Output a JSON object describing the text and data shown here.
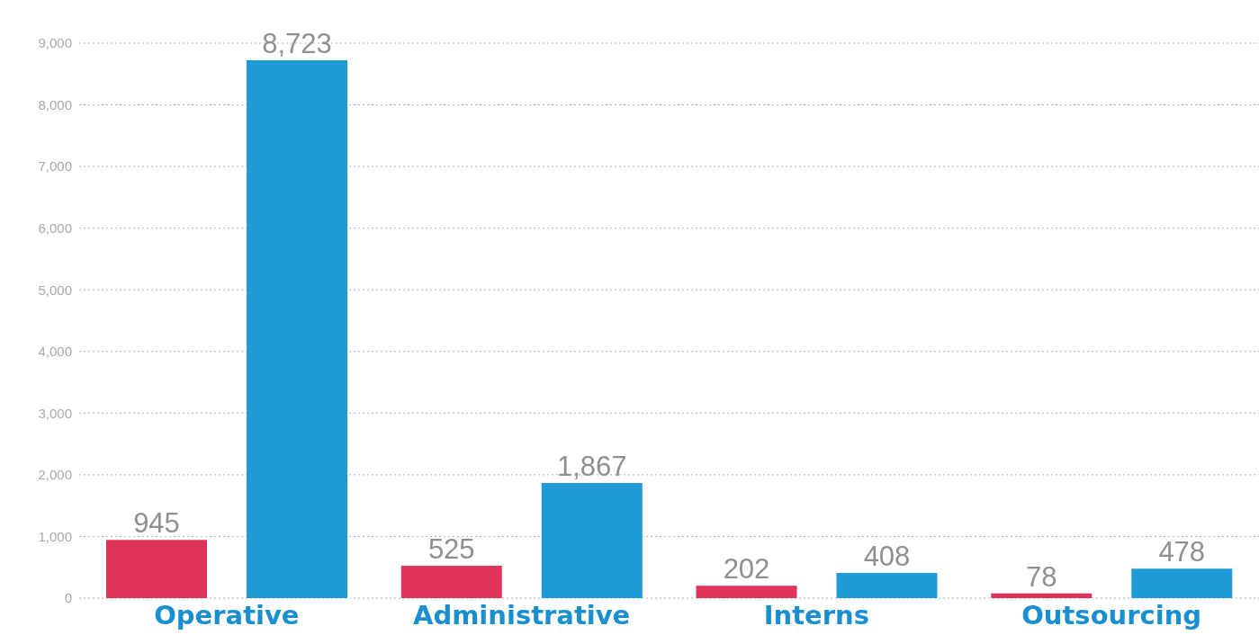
{
  "chart_data": {
    "type": "bar",
    "categories": [
      "Operative",
      "Administrative",
      "Interns",
      "Outsourcing"
    ],
    "series": [
      {
        "color": "#e0335a",
        "values": [
          945,
          525,
          202,
          78
        ],
        "value_labels": [
          "945",
          "525",
          "202",
          "78"
        ]
      },
      {
        "color": "#1e9ad6",
        "values": [
          8723,
          1867,
          408,
          478
        ],
        "value_labels": [
          "8,723",
          "1,867",
          "408",
          "478"
        ]
      }
    ],
    "ylim": [
      0,
      9000
    ],
    "yticks": [
      {
        "value": 0,
        "label": "0"
      },
      {
        "value": 1000,
        "label": "1,000"
      },
      {
        "value": 2000,
        "label": "2,000"
      },
      {
        "value": 3000,
        "label": "3,000"
      },
      {
        "value": 4000,
        "label": "4,000"
      },
      {
        "value": 5000,
        "label": "5,000"
      },
      {
        "value": 6000,
        "label": "6,000"
      },
      {
        "value": 7000,
        "label": "7,000"
      },
      {
        "value": 8000,
        "label": "8,000"
      },
      {
        "value": 9000,
        "label": "9,000"
      }
    ],
    "grid": "y"
  }
}
